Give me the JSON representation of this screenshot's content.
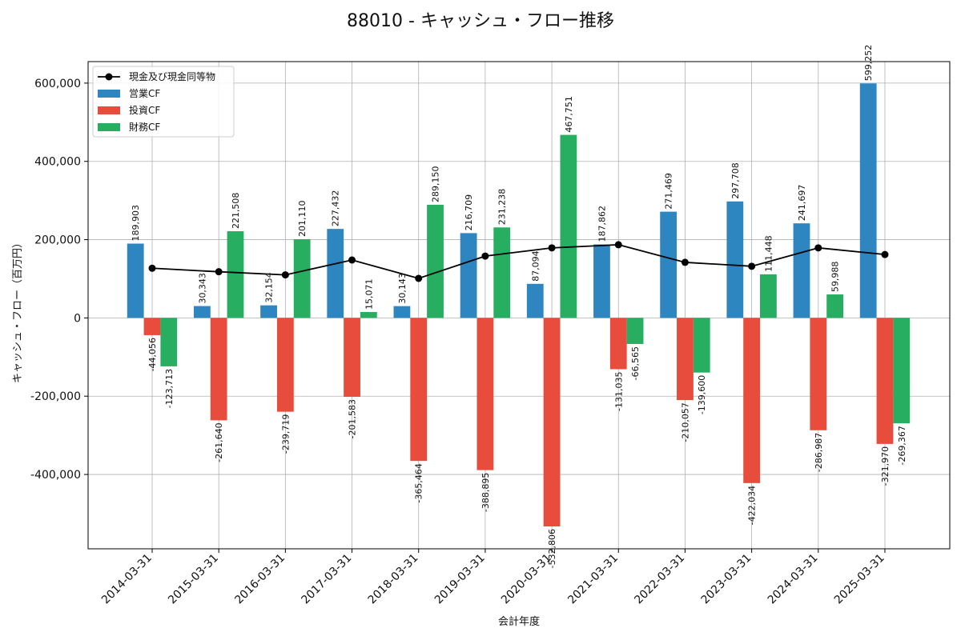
{
  "chart_data": {
    "type": "bar",
    "title": "88010 - キャッシュ・フロー推移",
    "xlabel": "会計年度",
    "ylabel": "キャッシュ・フロー（百万円）",
    "ylim": [
      -590000,
      655000
    ],
    "yticks": [
      -400000,
      -200000,
      0,
      200000,
      400000,
      600000
    ],
    "ytick_labels": [
      "-400,000",
      "-200,000",
      "0",
      "200,000",
      "400,000",
      "600,000"
    ],
    "grid": true,
    "legend_position": "top-left",
    "categories": [
      "2014-03-31",
      "2015-03-31",
      "2016-03-31",
      "2017-03-31",
      "2018-03-31",
      "2019-03-31",
      "2020-03-31",
      "2021-03-31",
      "2022-03-31",
      "2023-03-31",
      "2024-03-31",
      "2025-03-31"
    ],
    "series": [
      {
        "name": "営業CF",
        "color": "#2e86c1",
        "values": [
          189903,
          30343,
          32154,
          227432,
          30143,
          216709,
          87094,
          187862,
          271469,
          297708,
          241697,
          599252
        ],
        "labels": [
          "189,903",
          "30,343",
          "32,154",
          "227,432",
          "30,143",
          "216,709",
          "87,094",
          "187,862",
          "271,469",
          "297,708",
          "241,697",
          "599,252"
        ]
      },
      {
        "name": "投資CF",
        "color": "#e74c3c",
        "values": [
          -44056,
          -261640,
          -239719,
          -201583,
          -365464,
          -388895,
          -532806,
          -131035,
          -210057,
          -422034,
          -286987,
          -321970
        ],
        "labels": [
          "-44,056",
          "-261,640",
          "-239,719",
          "-201,583",
          "-365,464",
          "-388,895",
          "-532,806",
          "-131,035",
          "-210,057",
          "-422,034",
          "-286,987",
          "-321,970"
        ]
      },
      {
        "name": "財務CF",
        "color": "#27ae60",
        "values": [
          -123713,
          221508,
          201110,
          15071,
          289150,
          231238,
          467751,
          -66565,
          -139600,
          111448,
          59988,
          -269367
        ],
        "labels": [
          "-123,713",
          "221,508",
          "201,110",
          "15,071",
          "289,150",
          "231,238",
          "467,751",
          "-66,565",
          "-139,600",
          "111,448",
          "59,988",
          "-269,367"
        ]
      }
    ],
    "line": {
      "name": "現金及び現金同等物",
      "color": "#000000",
      "values": [
        127000,
        118000,
        110000,
        148000,
        101000,
        158000,
        179000,
        187000,
        142000,
        132000,
        179000,
        162000
      ]
    }
  }
}
